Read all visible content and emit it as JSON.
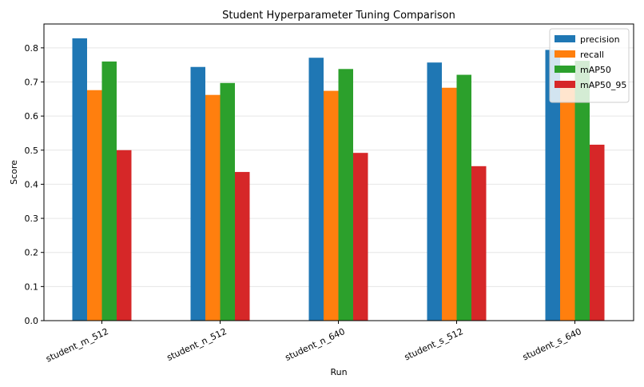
{
  "chart_data": {
    "type": "bar",
    "title": "Student Hyperparameter Tuning Comparison",
    "xlabel": "Run",
    "ylabel": "Score",
    "ylim": [
      0,
      0.87
    ],
    "yticks": [
      "0.0",
      "0.1",
      "0.2",
      "0.3",
      "0.4",
      "0.5",
      "0.6",
      "0.7",
      "0.8"
    ],
    "grid": "horizontal",
    "legend_position": "top-right",
    "categories": [
      "student_m_512",
      "student_n_512",
      "student_n_640",
      "student_s_512",
      "student_s_640"
    ],
    "series": [
      {
        "name": "precision",
        "color": "#1f77b4",
        "values": [
          0.828,
          0.744,
          0.771,
          0.757,
          0.794
        ]
      },
      {
        "name": "recall",
        "color": "#ff7f0e",
        "values": [
          0.676,
          0.662,
          0.674,
          0.683,
          0.684
        ]
      },
      {
        "name": "mAP50",
        "color": "#2ca02c",
        "values": [
          0.76,
          0.697,
          0.738,
          0.721,
          0.762
        ]
      },
      {
        "name": "mAP50_95",
        "color": "#d62728",
        "values": [
          0.5,
          0.436,
          0.492,
          0.453,
          0.516
        ]
      }
    ]
  }
}
